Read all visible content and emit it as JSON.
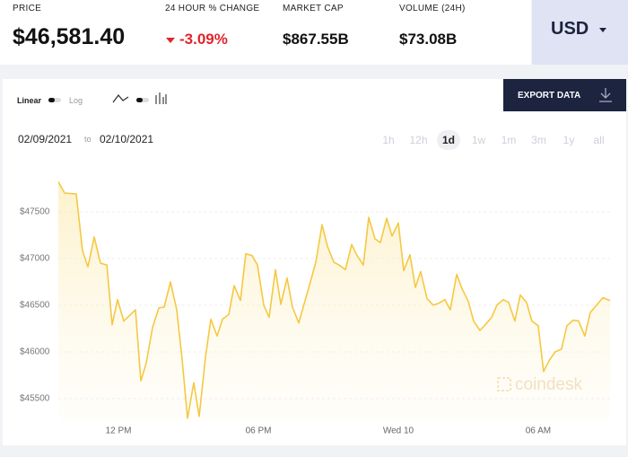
{
  "header": {
    "price_label": "PRICE",
    "price": "$46,581.40",
    "change_label": "24 HOUR % CHANGE",
    "change": "-3.09%",
    "market_cap_label": "MARKET CAP",
    "market_cap": "$867.55B",
    "volume_label": "VOLUME (24H)",
    "volume": "$73.08B",
    "currency": "USD"
  },
  "toolbar": {
    "scale_linear": "Linear",
    "scale_log": "Log",
    "export": "EXPORT DATA",
    "date_from": "02/09/2021",
    "date_sep": "to",
    "date_to": "02/10/2021",
    "ranges": [
      "1h",
      "12h",
      "1d",
      "1w",
      "1m",
      "3m",
      "1y",
      "all"
    ],
    "selected_range": 2
  },
  "watermark": "coindesk",
  "chart_data": {
    "type": "area",
    "color": "#f5c842",
    "grid": true,
    "log_scale": false,
    "x": [
      9.42,
      9.69,
      10.19,
      10.46,
      10.69,
      10.96,
      11.23,
      11.5,
      11.73,
      11.96,
      12.23,
      12.73,
      12.96,
      13.19,
      13.46,
      13.73,
      13.96,
      14.23,
      14.5,
      14.73,
      14.96,
      15.23,
      15.46,
      15.73,
      15.96,
      16.23,
      16.46,
      16.73,
      16.96,
      17.23,
      17.46,
      17.73,
      17.96,
      18.23,
      18.46,
      18.73,
      18.96,
      19.23,
      19.46,
      19.73,
      20.23,
      20.46,
      20.73,
      20.96,
      21.23,
      21.46,
      21.73,
      22.0,
      22.23,
      22.5,
      22.73,
      23.0,
      23.23,
      23.5,
      23.73,
      24.0,
      24.23,
      24.5,
      24.73,
      24.96,
      25.23,
      25.5,
      25.73,
      26.0,
      26.23,
      26.5,
      26.73,
      27.0,
      27.23,
      27.5,
      27.73,
      28.0,
      28.23,
      28.5,
      28.73,
      29.0,
      29.23,
      29.5,
      29.73,
      30.0,
      30.23,
      30.5,
      30.73,
      31.0,
      31.23,
      31.5,
      31.73,
      32.0,
      32.23,
      32.5,
      32.77,
      33.08
    ],
    "values": [
      47820,
      47700,
      47690,
      47080,
      46910,
      47230,
      46950,
      46930,
      46290,
      46560,
      46330,
      46450,
      45690,
      45880,
      46260,
      46470,
      46480,
      46750,
      46450,
      45920,
      45290,
      45670,
      45310,
      45940,
      46350,
      46170,
      46350,
      46400,
      46710,
      46550,
      47050,
      47030,
      46930,
      46500,
      46370,
      46880,
      46510,
      46790,
      46480,
      46310,
      46750,
      46960,
      47360,
      47130,
      46960,
      46930,
      46880,
      47150,
      47030,
      46930,
      47440,
      47210,
      47170,
      47430,
      47240,
      47380,
      46870,
      47040,
      46690,
      46860,
      46570,
      46500,
      46520,
      46560,
      46450,
      46830,
      46680,
      46540,
      46330,
      46230,
      46290,
      46370,
      46500,
      46560,
      46530,
      46330,
      46610,
      46530,
      46330,
      46280,
      45790,
      45920,
      46000,
      46030,
      46280,
      46340,
      46330,
      46170,
      46420,
      46500,
      46580,
      46550
    ],
    "xlim": [
      9.42,
      33.08
    ],
    "xticks": [
      {
        "value": 12,
        "label": "12 PM"
      },
      {
        "value": 18,
        "label": "06 PM"
      },
      {
        "value": 24,
        "label": "Wed 10"
      },
      {
        "value": 30,
        "label": "06 AM"
      }
    ],
    "ylim": [
      45250,
      47950
    ],
    "yticks": [
      {
        "value": 45500,
        "label": "$45500"
      },
      {
        "value": 46000,
        "label": "$46000"
      },
      {
        "value": 46500,
        "label": "$46500"
      },
      {
        "value": 47000,
        "label": "$47000"
      },
      {
        "value": 47500,
        "label": "$47500"
      }
    ]
  }
}
